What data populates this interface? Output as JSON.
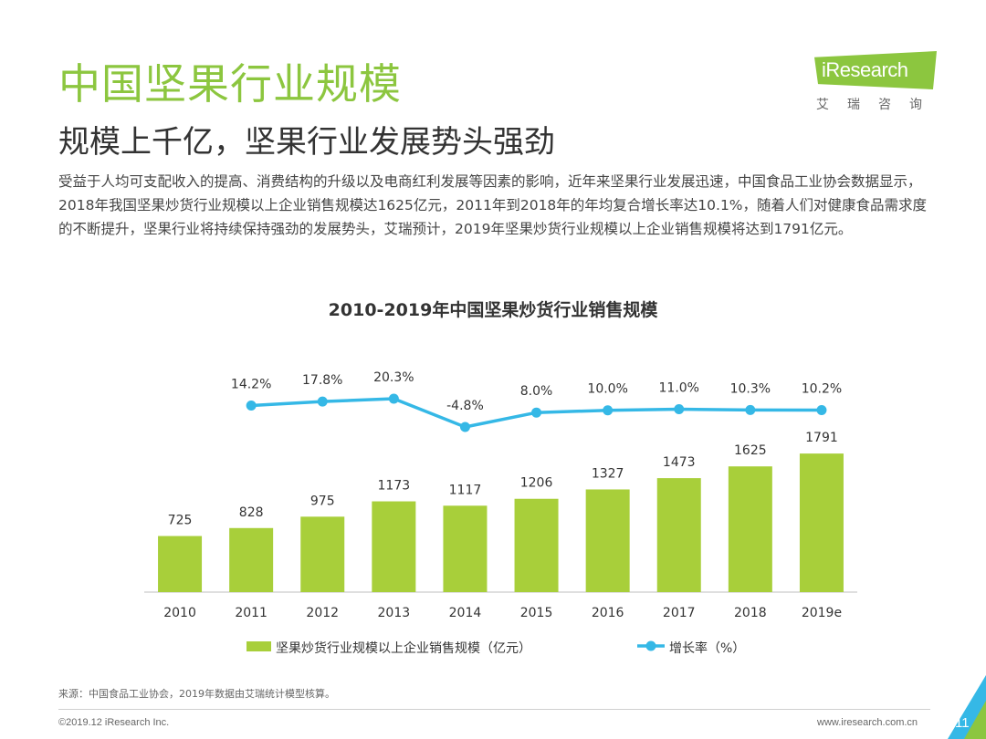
{
  "header": {
    "title": "中国坚果行业规模",
    "subtitle": "规模上千亿，坚果行业发展势头强劲"
  },
  "logo": {
    "brand": "iResearch",
    "cn": "艾瑞咨询"
  },
  "intro_text": "受益于人均可支配收入的提高、消费结构的升级以及电商红利发展等因素的影响，近年来坚果行业发展迅速，中国食品工业协会数据显示，2018年我国坚果炒货行业规模以上企业销售规模达1625亿元，2011年到2018年的年均复合增长率达10.1%，随着人们对健康食品需求度的不断提升，坚果行业将持续保持强劲的发展势头，艾瑞预计，2019年坚果炒货行业规模以上企业销售规模将达到1791亿元。",
  "chart_data": {
    "type": "bar",
    "title": "2010-2019年中国坚果炒货行业销售规模",
    "categories": [
      "2010",
      "2011",
      "2012",
      "2013",
      "2014",
      "2015",
      "2016",
      "2017",
      "2018",
      "2019e"
    ],
    "series": [
      {
        "name": "坚果炒货行业规模以上企业销售规模（亿元）",
        "type": "bar",
        "values": [
          725,
          828,
          975,
          1173,
          1117,
          1206,
          1327,
          1473,
          1625,
          1791
        ],
        "labels": [
          "725",
          "828",
          "975",
          "1173",
          "1117",
          "1206",
          "1327",
          "1473",
          "1625",
          "1791"
        ]
      },
      {
        "name": "增长率（%）",
        "type": "line",
        "values": [
          null,
          14.2,
          17.8,
          20.3,
          -4.8,
          8.0,
          10.0,
          11.0,
          10.3,
          10.2
        ],
        "labels": [
          "",
          "14.2%",
          "17.8%",
          "20.3%",
          "-4.8%",
          "8.0%",
          "10.0%",
          "11.0%",
          "10.3%",
          "10.2%"
        ]
      }
    ],
    "legend_position": "bottom",
    "grid": false,
    "colors": {
      "bar": "#a8cf3a",
      "line": "#35b8e6"
    }
  },
  "footer": {
    "source": "来源：中国食品工业协会，2019年数据由艾瑞统计模型核算。",
    "copyright": "©2019.12 iResearch Inc.",
    "website": "www.iresearch.com.cn",
    "page": "11"
  }
}
